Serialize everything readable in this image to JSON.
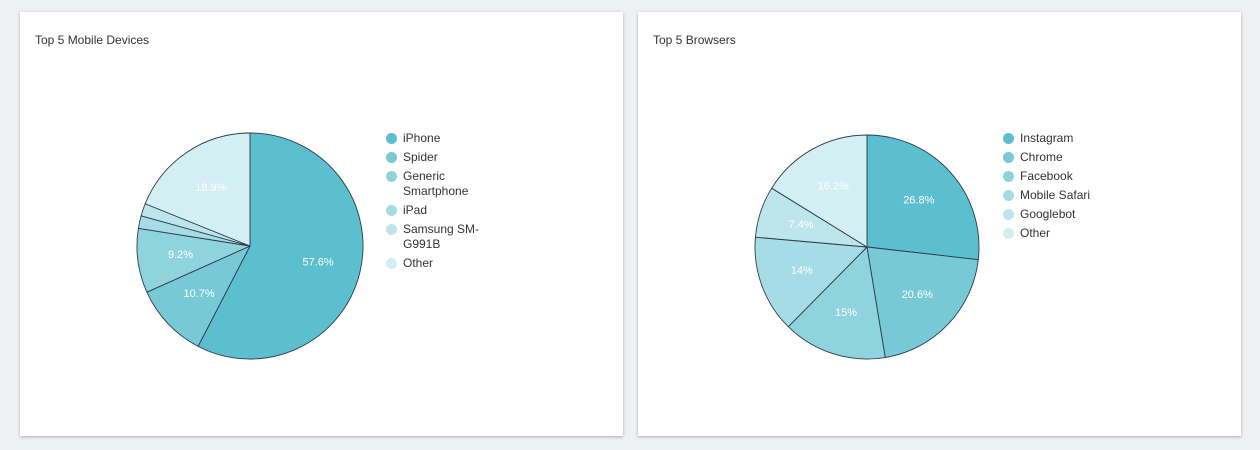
{
  "chart_data": [
    {
      "type": "pie",
      "title": "Top 5 Mobile Devices",
      "slices": [
        {
          "label": "iPhone",
          "value": 57.6,
          "color": "#5bbfcf",
          "data_label": "57.6%"
        },
        {
          "label": "Spider",
          "value": 10.7,
          "color": "#77c9d6",
          "data_label": "10.7%"
        },
        {
          "label": "Generic Smartphone",
          "value": 9.2,
          "color": "#8fd3de",
          "data_label": "9.2%"
        },
        {
          "label": "iPad",
          "value": 1.8,
          "color": "#a6dce5",
          "data_label": ""
        },
        {
          "label": "Samsung SM-G991B",
          "value": 1.8,
          "color": "#bde6ec",
          "data_label": ""
        },
        {
          "label": "Other",
          "value": 18.9,
          "color": "#d3eff3",
          "data_label": "18.9%"
        }
      ],
      "legend_lines": [
        [
          "iPhone"
        ],
        [
          "Spider"
        ],
        [
          "Generic",
          "Smartphone"
        ],
        [
          "iPad"
        ],
        [
          "Samsung SM-",
          "G991B"
        ],
        [
          "Other"
        ]
      ],
      "legend_position": "right"
    },
    {
      "type": "pie",
      "title": "Top 5 Browsers",
      "slices": [
        {
          "label": "Instagram",
          "value": 26.8,
          "color": "#5bbfcf",
          "data_label": "26.8%"
        },
        {
          "label": "Chrome",
          "value": 20.6,
          "color": "#77c9d6",
          "data_label": "20.6%"
        },
        {
          "label": "Facebook",
          "value": 15,
          "color": "#8fd3de",
          "data_label": "15%"
        },
        {
          "label": "Mobile Safari",
          "value": 14,
          "color": "#a6dce5",
          "data_label": "14%"
        },
        {
          "label": "Googlebot",
          "value": 7.4,
          "color": "#bde6ec",
          "data_label": "7.4%"
        },
        {
          "label": "Other",
          "value": 16.2,
          "color": "#d3eff3",
          "data_label": "16.2%"
        }
      ],
      "legend_lines": [
        [
          "Instagram"
        ],
        [
          "Chrome"
        ],
        [
          "Facebook"
        ],
        [
          "Mobile Safari"
        ],
        [
          "Googlebot"
        ],
        [
          "Other"
        ]
      ],
      "legend_position": "right"
    }
  ]
}
